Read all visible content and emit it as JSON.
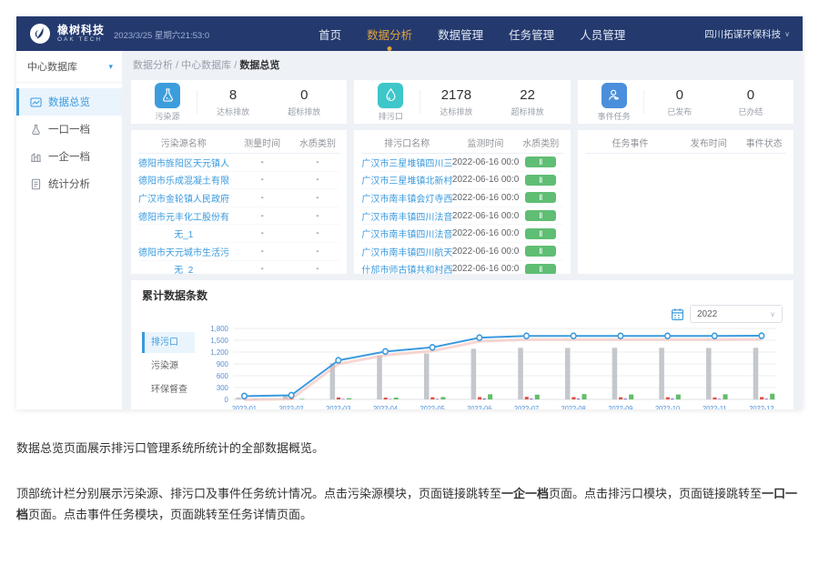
{
  "navbar": {
    "brand": {
      "name": "橡树科技",
      "sub": "OAK TECH"
    },
    "datetime": "2023/3/25 星期六21:53:0",
    "menu": [
      {
        "id": "home",
        "label": "首页",
        "active": false
      },
      {
        "id": "data-analysis",
        "label": "数据分析",
        "active": true
      },
      {
        "id": "data-management",
        "label": "数据管理",
        "active": false
      },
      {
        "id": "task-management",
        "label": "任务管理",
        "active": false
      },
      {
        "id": "personnel-management",
        "label": "人员管理",
        "active": false
      }
    ],
    "user": "四川拓谋环保科技",
    "caret": "∨"
  },
  "sidebar": {
    "database_select": "中心数据库",
    "select_caret": "▾",
    "items": [
      {
        "id": "data-overview",
        "label": "数据总览",
        "icon": "overview-icon",
        "active": true
      },
      {
        "id": "outlet-archive",
        "label": "一口一档",
        "icon": "flask-icon",
        "active": false
      },
      {
        "id": "enterprise-archive",
        "label": "一企一档",
        "icon": "enterprise-icon",
        "active": false
      },
      {
        "id": "statistic-analysis",
        "label": "统计分析",
        "icon": "report-icon",
        "active": false
      }
    ]
  },
  "breadcrumb": [
    "数据分析",
    "中心数据库",
    "数据总览"
  ],
  "stat_cards": [
    {
      "id": "pollution-source",
      "title": "污染源",
      "icon": "flask-icon",
      "color": "#3d9ddc",
      "stats": [
        {
          "value": "8",
          "label": "达标排放"
        },
        {
          "value": "0",
          "label": "超标排放"
        }
      ]
    },
    {
      "id": "outlet",
      "title": "排污口",
      "icon": "droplet-icon",
      "color": "#3ec6c9",
      "stats": [
        {
          "value": "2178",
          "label": "达标排放"
        },
        {
          "value": "22",
          "label": "超标排放"
        }
      ]
    },
    {
      "id": "event-task",
      "title": "事件任务",
      "icon": "person-icon",
      "color": "#4b8fdc",
      "stats": [
        {
          "value": "0",
          "label": "已发布"
        },
        {
          "value": "0",
          "label": "已办结"
        }
      ]
    }
  ],
  "tables": [
    {
      "id": "pollution-source-table",
      "headers": [
        "污染源名称",
        "测量时间",
        "水质类别"
      ],
      "badge": false,
      "rows": [
        [
          "德阳市旌阳区天元镇人民...",
          "-",
          "-"
        ],
        [
          "德阳市乐成混凝土有限...",
          "-",
          "-"
        ],
        [
          "广汉市金轮镇人民政府",
          "-",
          "-"
        ],
        [
          "德阳市元丰化工股份有限...",
          "-",
          "-"
        ],
        [
          "无_1",
          "-",
          "-"
        ],
        [
          "德阳市天元城市生活污水...",
          "-",
          "-"
        ],
        [
          "无_2",
          "-",
          "-"
        ]
      ]
    },
    {
      "id": "outlet-table",
      "headers": [
        "排污口名称",
        "监测时间",
        "水质类别"
      ],
      "badge": true,
      "rows": [
        [
          "广汉市三星堆镇四川三星...",
          "2022-06-16 00:00",
          "Ⅱ"
        ],
        [
          "广汉市三星堆镇北新村东...",
          "2022-06-16 00:00",
          "Ⅱ"
        ],
        [
          "广汉市南丰镇会灯寺西14...",
          "2022-06-16 00:00",
          "Ⅱ"
        ],
        [
          "广汉市南丰镇四川法音学...",
          "2022-06-16 00:00",
          "Ⅱ"
        ],
        [
          "广汉市南丰镇四川法音学...",
          "2022-06-16 00:00",
          "Ⅱ"
        ],
        [
          "广汉市南丰镇四川航天职...",
          "2022-06-16 00:00",
          "Ⅱ"
        ],
        [
          "什邡市师古镇共和村西40...",
          "2022-06-16 00:00",
          "Ⅱ"
        ]
      ]
    },
    {
      "id": "task-table",
      "headers": [
        "任务事件",
        "发布时间",
        "事件状态"
      ],
      "badge": false,
      "rows": []
    }
  ],
  "chart": {
    "title": "累计数据条数",
    "year": "2022",
    "year_caret": "∨",
    "tabs": [
      {
        "id": "outlet",
        "label": "排污口",
        "active": true
      },
      {
        "id": "pollution-source",
        "label": "污染源",
        "active": false
      },
      {
        "id": "env-inspection",
        "label": "环保督查",
        "active": false
      }
    ],
    "chart_data": {
      "type": "bar+line",
      "categories": [
        "2022-01",
        "2022-02",
        "2022-03",
        "2022-04",
        "2022-05",
        "2022-06",
        "2022-07",
        "2022-08",
        "2022-09",
        "2022-10",
        "2022-11",
        "2022-12"
      ],
      "series": [
        {
          "name": "bar-gray",
          "type": "bar",
          "color": "#c4c7cc",
          "values": [
            50,
            90,
            920,
            1110,
            1165,
            1285,
            1310,
            1305,
            1310,
            1310,
            1305,
            1310
          ]
        },
        {
          "name": "bar-red",
          "type": "bar",
          "color": "#e04f3f",
          "values": [
            25,
            30,
            50,
            45,
            55,
            60,
            65,
            60,
            55,
            55,
            50,
            60
          ]
        },
        {
          "name": "bar-purple",
          "type": "bar",
          "color": "#6f42c1",
          "values": [
            0,
            0,
            10,
            8,
            12,
            20,
            18,
            18,
            18,
            18,
            12,
            15
          ]
        },
        {
          "name": "bar-green",
          "type": "bar",
          "color": "#63bd6a",
          "values": [
            10,
            15,
            30,
            45,
            60,
            130,
            120,
            135,
            125,
            125,
            130,
            145
          ]
        },
        {
          "name": "line-blue",
          "type": "line",
          "color": "#3a9ade",
          "values": [
            85,
            105,
            990,
            1215,
            1320,
            1565,
            1610,
            1610,
            1610,
            1610,
            1610,
            1615
          ]
        }
      ],
      "ylim": [
        0,
        1800
      ],
      "yticks": [
        0,
        300,
        600,
        900,
        1200,
        1500,
        1800
      ],
      "grid": true,
      "legend": "none"
    }
  },
  "description": {
    "p1": "数据总览页面展示排污口管理系统所统计的全部数据概览。",
    "p2_segments": [
      {
        "t": "顶部统计栏分别展示污染源、排污口及事件任务统计情况。点击污染源模块，页面链接跳转至",
        "b": false
      },
      {
        "t": "一企一档",
        "b": true
      },
      {
        "t": "页面。点击排污口模块，页面链接跳转至",
        "b": false
      },
      {
        "t": "一口一档",
        "b": true
      },
      {
        "t": "页面。点击事件任务模块，页面跳转至任务详情页面。",
        "b": false
      }
    ]
  }
}
